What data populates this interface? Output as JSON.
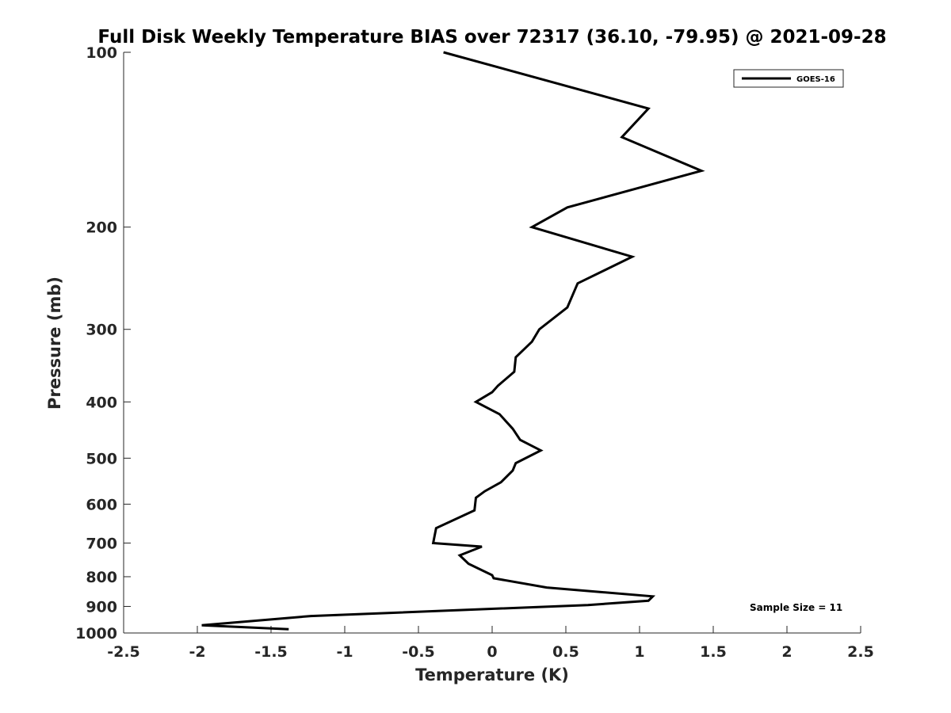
{
  "chart_data": {
    "type": "line",
    "title": "Full Disk Weekly Temperature BIAS over 72317 (36.10, -79.95) @ 2021-09-28",
    "xlabel": "Temperature (K)",
    "ylabel": "Pressure (mb)",
    "xlim": [
      -2.5,
      2.5
    ],
    "ylim": [
      100,
      1000
    ],
    "y_scale": "log",
    "y_reversed": true,
    "grid": false,
    "x_ticks": [
      -2.5,
      -2,
      -1.5,
      -1,
      -0.5,
      0,
      0.5,
      1,
      1.5,
      2,
      2.5
    ],
    "x_tick_labels": [
      "-2.5",
      "-2",
      "-1.5",
      "-1",
      "-0.5",
      "0",
      "0.5",
      "1",
      "1.5",
      "2",
      "2.5"
    ],
    "y_ticks": [
      100,
      200,
      300,
      400,
      500,
      600,
      700,
      800,
      900,
      1000
    ],
    "y_tick_labels": [
      "100",
      "200",
      "300",
      "400",
      "500",
      "600",
      "700",
      "800",
      "900",
      "1000"
    ],
    "legend": {
      "placement": "top-right",
      "entries": [
        "GOES-16"
      ]
    },
    "annotation": "Sample Size = 11",
    "series": [
      {
        "name": "GOES-16",
        "color": "#000000",
        "x": [
          -0.33,
          1.06,
          0.88,
          1.42,
          0.51,
          0.27,
          0.95,
          0.58,
          0.51,
          0.32,
          0.27,
          0.16,
          0.15,
          0.04,
          0.0,
          -0.11,
          0.05,
          0.14,
          0.19,
          0.33,
          0.16,
          0.14,
          0.06,
          -0.05,
          -0.11,
          -0.12,
          -0.38,
          -0.4,
          -0.07,
          -0.22,
          -0.16,
          0.0,
          0.01,
          0.37,
          1.09,
          1.06,
          0.65,
          -1.23,
          -1.97,
          -1.38
        ],
        "y": [
          100,
          125,
          140,
          160,
          185,
          200,
          225,
          250,
          275,
          300,
          315,
          335,
          355,
          375,
          385,
          400,
          420,
          445,
          465,
          485,
          510,
          525,
          550,
          570,
          585,
          615,
          660,
          700,
          710,
          735,
          760,
          795,
          805,
          835,
          865,
          880,
          895,
          935,
          970,
          985
        ]
      }
    ]
  }
}
